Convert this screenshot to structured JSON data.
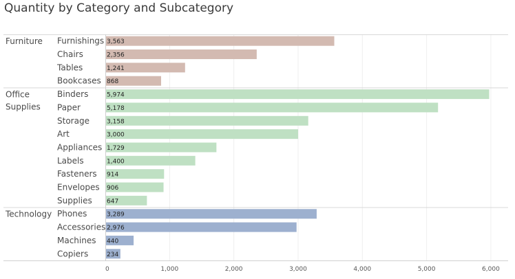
{
  "chart_data": {
    "type": "bar",
    "orientation": "horizontal",
    "title": "Quantity by Category and Subcategory",
    "xlabel": "",
    "ylabel": "",
    "xlim": [
      0,
      6000
    ],
    "xticks": [
      0,
      1000,
      2000,
      3000,
      4000,
      5000,
      6000
    ],
    "xtick_labels": [
      "0",
      "1,000",
      "2,000",
      "3,000",
      "4,000",
      "5,000",
      "6,000"
    ],
    "grid": "vertical",
    "legend": "none",
    "groups": [
      {
        "name": "Furniture",
        "name_lines": [
          "Furniture"
        ],
        "color": "#d3bab1",
        "items": [
          {
            "label": "Furnishings",
            "value": 3563,
            "value_label": "3,563"
          },
          {
            "label": "Chairs",
            "value": 2356,
            "value_label": "2,356"
          },
          {
            "label": "Tables",
            "value": 1241,
            "value_label": "1,241"
          },
          {
            "label": "Bookcases",
            "value": 868,
            "value_label": "868"
          }
        ]
      },
      {
        "name": "Office Supplies",
        "name_lines": [
          "Office",
          "Supplies"
        ],
        "color": "#bfe0c3",
        "items": [
          {
            "label": "Binders",
            "value": 5974,
            "value_label": "5,974"
          },
          {
            "label": "Paper",
            "value": 5178,
            "value_label": "5,178"
          },
          {
            "label": "Storage",
            "value": 3158,
            "value_label": "3,158"
          },
          {
            "label": "Art",
            "value": 3000,
            "value_label": "3,000"
          },
          {
            "label": "Appliances",
            "value": 1729,
            "value_label": "1,729"
          },
          {
            "label": "Labels",
            "value": 1400,
            "value_label": "1,400"
          },
          {
            "label": "Fasteners",
            "value": 914,
            "value_label": "914"
          },
          {
            "label": "Envelopes",
            "value": 906,
            "value_label": "906"
          },
          {
            "label": "Supplies",
            "value": 647,
            "value_label": "647"
          }
        ]
      },
      {
        "name": "Technology",
        "name_lines": [
          "Technology"
        ],
        "color": "#9db0cf",
        "items": [
          {
            "label": "Phones",
            "value": 3289,
            "value_label": "3,289"
          },
          {
            "label": "Accessories",
            "value": 2976,
            "value_label": "2,976"
          },
          {
            "label": "Machines",
            "value": 440,
            "value_label": "440"
          },
          {
            "label": "Copiers",
            "value": 234,
            "value_label": "234"
          }
        ]
      }
    ]
  }
}
